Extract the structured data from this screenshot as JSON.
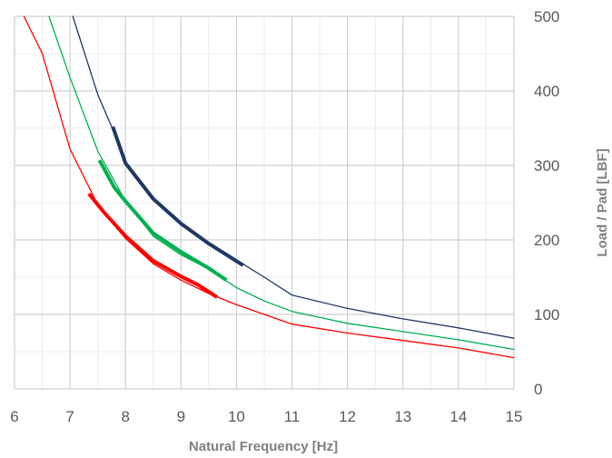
{
  "chart_data": {
    "type": "line",
    "title": "",
    "xlabel": "Natural Frequency [Hz]",
    "ylabel": "Load / Pad [LBF]",
    "xlim": [
      6,
      15
    ],
    "ylim": [
      0,
      500
    ],
    "x_ticks": [
      "6",
      "7",
      "8",
      "9",
      "10",
      "11",
      "12",
      "13",
      "14",
      "15"
    ],
    "y_ticks": [
      "0",
      "100",
      "200",
      "300",
      "400",
      "500"
    ],
    "y_axis_position": "right",
    "grid": true,
    "legend": "none",
    "series": [
      {
        "color": "#ff0000",
        "values": [
          [
            6.17,
            500
          ],
          [
            6.5,
            450
          ],
          [
            7,
            322
          ],
          [
            7.5,
            247
          ],
          [
            8,
            202
          ],
          [
            8.5,
            168
          ],
          [
            9,
            146
          ],
          [
            9.5,
            128
          ],
          [
            10,
            113
          ],
          [
            10.5,
            100
          ],
          [
            11,
            87
          ],
          [
            12,
            75
          ],
          [
            13,
            65
          ],
          [
            14,
            55
          ],
          [
            15,
            42
          ]
        ],
        "highlight": [
          [
            7.34,
            262
          ],
          [
            7.6,
            238
          ],
          [
            8,
            205
          ],
          [
            8.5,
            172
          ],
          [
            9,
            151
          ],
          [
            9.3,
            140
          ],
          [
            9.65,
            123
          ]
        ]
      },
      {
        "color": "#00b050",
        "values": [
          [
            6.62,
            500
          ],
          [
            7,
            418
          ],
          [
            7.5,
            319
          ],
          [
            8,
            252
          ],
          [
            8.5,
            205
          ],
          [
            9,
            180
          ],
          [
            9.5,
            161
          ],
          [
            10,
            136
          ],
          [
            10.5,
            118
          ],
          [
            11,
            104
          ],
          [
            12,
            88
          ],
          [
            13,
            77
          ],
          [
            14,
            66
          ],
          [
            15,
            53
          ]
        ],
        "highlight": [
          [
            7.53,
            307
          ],
          [
            7.8,
            270
          ],
          [
            8,
            252
          ],
          [
            8.5,
            209
          ],
          [
            9,
            184
          ],
          [
            9.5,
            162
          ],
          [
            9.82,
            146
          ]
        ]
      },
      {
        "color": "#1f3864",
        "values": [
          [
            7.05,
            500
          ],
          [
            7.5,
            395
          ],
          [
            7.75,
            352
          ],
          [
            8,
            303
          ],
          [
            8.5,
            255
          ],
          [
            9,
            222
          ],
          [
            9.5,
            195
          ],
          [
            10,
            173
          ],
          [
            10.5,
            150
          ],
          [
            11,
            126
          ],
          [
            12,
            108
          ],
          [
            13,
            94
          ],
          [
            14,
            82
          ],
          [
            15,
            68
          ]
        ],
        "highlight": [
          [
            7.77,
            352
          ],
          [
            8,
            303
          ],
          [
            8.5,
            255
          ],
          [
            9,
            222
          ],
          [
            9.5,
            195
          ],
          [
            10.12,
            166
          ]
        ]
      }
    ]
  }
}
